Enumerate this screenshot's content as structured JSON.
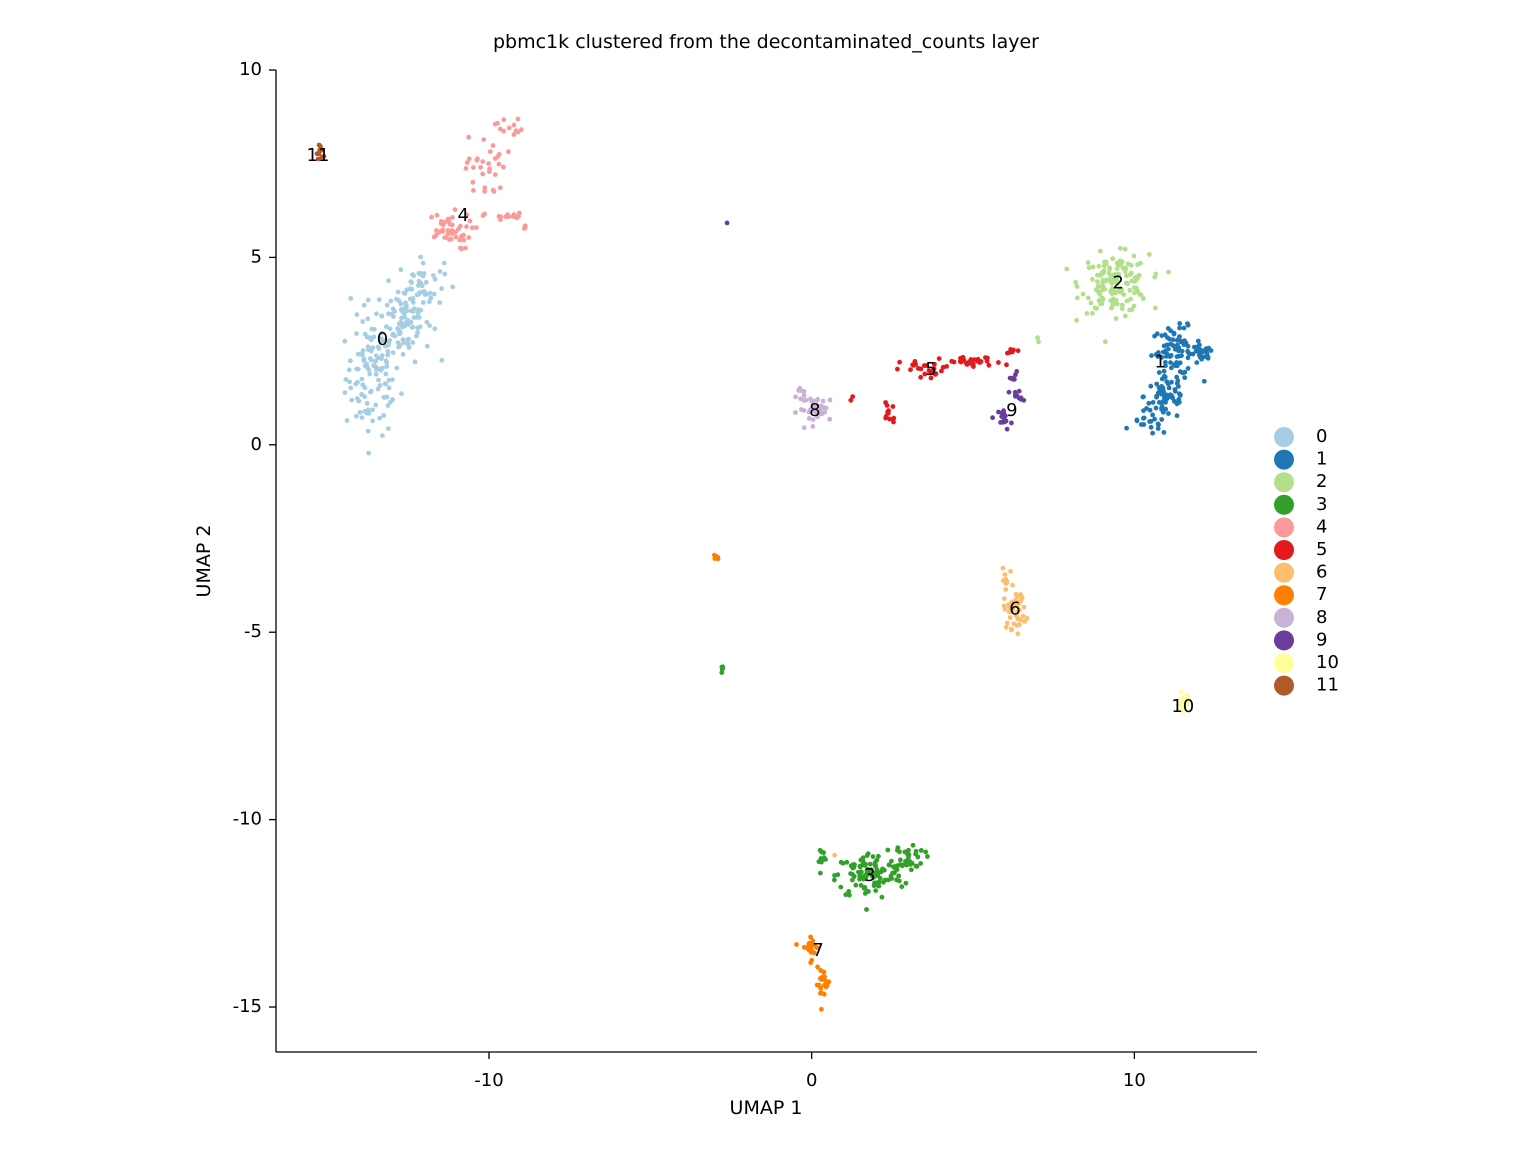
{
  "chart_data": {
    "type": "scatter",
    "title": "pbmc1k clustered from the decontaminated_counts layer",
    "xlabel": "UMAP 1",
    "ylabel": "UMAP 2",
    "xlim": [
      -16.6,
      13.8
    ],
    "ylim": [
      -16.2,
      10.0
    ],
    "xticks": [
      -10,
      0,
      10
    ],
    "xtick_labels": [
      "-10",
      "0",
      "10"
    ],
    "yticks": [
      10,
      5,
      0,
      -5,
      -10,
      -15
    ],
    "ytick_labels": [
      "10",
      "5",
      "0",
      "-5",
      "-10",
      "-15"
    ],
    "grid": false,
    "legend_position": "right",
    "clusters": [
      {
        "name": "0",
        "color": "#a6cee3",
        "label_pos": [
          -13.3,
          2.8
        ],
        "regions": [
          {
            "cx": -13.6,
            "cy": 1.8,
            "sx": 0.6,
            "sy": 1.1,
            "n": 110
          },
          {
            "cx": -12.7,
            "cy": 3.3,
            "sx": 0.65,
            "sy": 0.75,
            "n": 90
          },
          {
            "cx": -12.1,
            "cy": 4.3,
            "sx": 0.5,
            "sy": 0.45,
            "n": 45
          }
        ]
      },
      {
        "name": "1",
        "color": "#1f78b4",
        "label_pos": [
          10.8,
          2.2
        ],
        "regions": [
          {
            "cx": 11.3,
            "cy": 2.5,
            "sx": 0.55,
            "sy": 0.45,
            "n": 80
          },
          {
            "cx": 11.0,
            "cy": 1.3,
            "sx": 0.5,
            "sy": 0.45,
            "n": 60
          },
          {
            "cx": 12.1,
            "cy": 2.4,
            "sx": 0.25,
            "sy": 0.2,
            "n": 20
          },
          {
            "cx": 10.5,
            "cy": 0.6,
            "sx": 0.4,
            "sy": 0.25,
            "n": 20
          }
        ]
      },
      {
        "name": "2",
        "color": "#b2df8a",
        "label_pos": [
          9.5,
          4.3
        ],
        "regions": [
          {
            "cx": 9.4,
            "cy": 4.3,
            "sx": 0.75,
            "sy": 0.55,
            "n": 150
          },
          {
            "cx": 7.0,
            "cy": 2.8,
            "sx": 0.08,
            "sy": 0.06,
            "n": 2
          }
        ]
      },
      {
        "name": "3",
        "color": "#33a02c",
        "label_pos": [
          1.8,
          -11.5
        ],
        "regions": [
          {
            "cx": 1.8,
            "cy": -11.5,
            "sx": 0.75,
            "sy": 0.45,
            "n": 110
          },
          {
            "cx": 3.0,
            "cy": -11.0,
            "sx": 0.35,
            "sy": 0.25,
            "n": 40
          },
          {
            "cx": 0.3,
            "cy": -11.0,
            "sx": 0.1,
            "sy": 0.2,
            "n": 10
          },
          {
            "cx": -2.8,
            "cy": -6.0,
            "sx": 0.06,
            "sy": 0.1,
            "n": 5
          }
        ]
      },
      {
        "name": "4",
        "color": "#fb9a99",
        "label_pos": [
          -10.8,
          6.1
        ],
        "regions": [
          {
            "cx": -11.3,
            "cy": 5.7,
            "sx": 0.55,
            "sy": 0.35,
            "n": 45
          },
          {
            "cx": -10.1,
            "cy": 7.4,
            "sx": 0.45,
            "sy": 0.6,
            "n": 30
          },
          {
            "cx": -9.4,
            "cy": 8.5,
            "sx": 0.3,
            "sy": 0.2,
            "n": 12
          },
          {
            "cx": -9.5,
            "cy": 6.1,
            "sx": 0.45,
            "sy": 0.06,
            "n": 15
          },
          {
            "cx": -8.9,
            "cy": 5.8,
            "sx": 0.08,
            "sy": 0.06,
            "n": 4
          }
        ]
      },
      {
        "name": "5",
        "color": "#e31a1c",
        "label_pos": [
          3.7,
          2.0
        ],
        "regions": [
          {
            "cx": 3.6,
            "cy": 2.0,
            "sx": 0.6,
            "sy": 0.2,
            "n": 25
          },
          {
            "cx": 5.0,
            "cy": 2.2,
            "sx": 0.65,
            "sy": 0.1,
            "n": 30
          },
          {
            "cx": 2.4,
            "cy": 0.9,
            "sx": 0.15,
            "sy": 0.3,
            "n": 12
          },
          {
            "cx": 6.3,
            "cy": 2.5,
            "sx": 0.15,
            "sy": 0.06,
            "n": 6
          },
          {
            "cx": 1.2,
            "cy": 1.2,
            "sx": 0.06,
            "sy": 0.06,
            "n": 2
          }
        ]
      },
      {
        "name": "6",
        "color": "#fdbf6f",
        "label_pos": [
          6.3,
          -4.4
        ],
        "regions": [
          {
            "cx": 6.3,
            "cy": -4.4,
            "sx": 0.25,
            "sy": 0.35,
            "n": 45
          },
          {
            "cx": 6.0,
            "cy": -3.6,
            "sx": 0.15,
            "sy": 0.2,
            "n": 10
          },
          {
            "cx": 0.6,
            "cy": -11.0,
            "sx": 0.06,
            "sy": 0.06,
            "n": 1
          }
        ]
      },
      {
        "name": "7",
        "color": "#ff7f00",
        "label_pos": [
          0.2,
          -13.5
        ],
        "regions": [
          {
            "cx": -0.05,
            "cy": -13.4,
            "sx": 0.2,
            "sy": 0.25,
            "n": 20
          },
          {
            "cx": 0.35,
            "cy": -14.4,
            "sx": 0.15,
            "sy": 0.3,
            "n": 20
          },
          {
            "cx": -3.0,
            "cy": -3.0,
            "sx": 0.08,
            "sy": 0.05,
            "n": 6
          }
        ]
      },
      {
        "name": "8",
        "color": "#cab2d6",
        "label_pos": [
          0.1,
          0.9
        ],
        "regions": [
          {
            "cx": 0.2,
            "cy": 0.95,
            "sx": 0.45,
            "sy": 0.25,
            "n": 40
          },
          {
            "cx": -0.3,
            "cy": 1.4,
            "sx": 0.1,
            "sy": 0.1,
            "n": 5
          }
        ]
      },
      {
        "name": "9",
        "color": "#6a3d9a",
        "label_pos": [
          6.2,
          0.9
        ],
        "regions": [
          {
            "cx": 6.0,
            "cy": 0.7,
            "sx": 0.15,
            "sy": 0.2,
            "n": 15
          },
          {
            "cx": 6.3,
            "cy": 1.3,
            "sx": 0.15,
            "sy": 0.15,
            "n": 10
          },
          {
            "cx": 6.3,
            "cy": 1.9,
            "sx": 0.1,
            "sy": 0.1,
            "n": 6
          },
          {
            "cx": -2.6,
            "cy": 5.9,
            "sx": 0.06,
            "sy": 0.06,
            "n": 1
          }
        ]
      },
      {
        "name": "10",
        "color": "#ffff99",
        "label_pos": [
          11.5,
          -7.0
        ],
        "regions": [
          {
            "cx": 11.5,
            "cy": -6.9,
            "sx": 0.15,
            "sy": 0.2,
            "n": 12
          }
        ]
      },
      {
        "name": "11",
        "color": "#b15928",
        "label_pos": [
          -15.3,
          7.7
        ],
        "regions": [
          {
            "cx": -15.2,
            "cy": 7.8,
            "sx": 0.15,
            "sy": 0.15,
            "n": 10
          }
        ]
      }
    ]
  }
}
